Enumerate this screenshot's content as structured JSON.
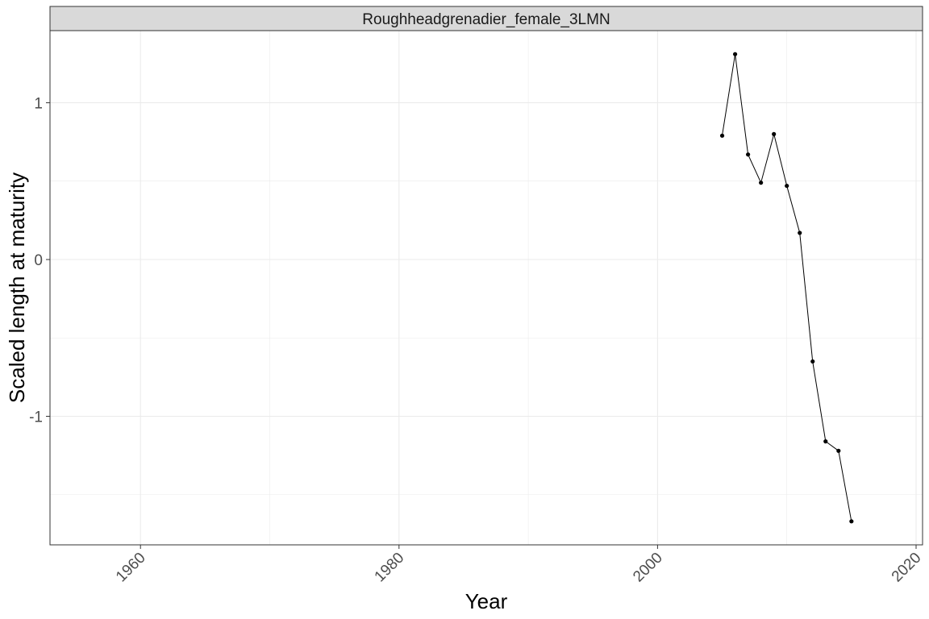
{
  "chart_data": {
    "type": "line",
    "title": "",
    "facet_label": "Roughheadgrenadier_female_3LMN",
    "xlabel": "Year",
    "ylabel": "Scaled length at maturity",
    "xlim": [
      1953,
      2020.5
    ],
    "ylim": [
      -1.82,
      1.46
    ],
    "x_ticks": [
      1960,
      1980,
      2000,
      2020
    ],
    "y_ticks": [
      -1,
      0,
      1
    ],
    "x_minor_ticks": [
      1970,
      1990,
      2010
    ],
    "y_minor_ticks": [
      -1.5,
      -0.5,
      0.5
    ],
    "grid": true,
    "legend": "none",
    "series": [
      {
        "x": [
          2005,
          2006,
          2007,
          2008,
          2009,
          2010,
          2011,
          2012,
          2013,
          2014,
          2015
        ],
        "y": [
          0.79,
          1.31,
          0.67,
          0.49,
          0.8,
          0.47,
          0.17,
          -0.65,
          -1.16,
          -1.22,
          -1.67
        ]
      }
    ],
    "colors": {
      "line": "#000000",
      "point": "#000000",
      "grid": "#ebebeb",
      "strip_fill": "#d9d9d9",
      "panel_border": "#333333"
    }
  }
}
